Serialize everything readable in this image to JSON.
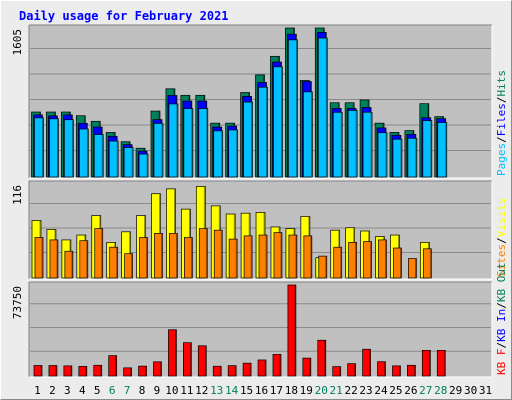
{
  "chart_data": [
    {
      "type": "bar",
      "title": "Daily usage for February 2021",
      "panel": "hits-files-pages",
      "ymax_label": "1605",
      "ylim": [
        0,
        1605
      ],
      "grid": true,
      "legend": [
        {
          "name": "Pages",
          "color": "#00c0ff"
        },
        {
          "name": "Files",
          "color": "#0000ff"
        },
        {
          "name": "Hits",
          "color": "#00805c"
        }
      ],
      "categories": [
        "1",
        "2",
        "3",
        "4",
        "5",
        "6",
        "7",
        "8",
        "9",
        "10",
        "11",
        "12",
        "13",
        "14",
        "15",
        "16",
        "17",
        "18",
        "19",
        "20",
        "21",
        "22",
        "23",
        "24",
        "25",
        "26",
        "27",
        "28",
        "29",
        "30",
        "31"
      ],
      "weekend_days": [
        "6",
        "7",
        "13",
        "14",
        "20",
        "21",
        "27",
        "28"
      ],
      "series": [
        {
          "name": "Hits",
          "values": [
            700,
            700,
            700,
            660,
            600,
            480,
            380,
            310,
            710,
            950,
            880,
            880,
            580,
            580,
            910,
            1100,
            1300,
            1605,
            1040,
            1605,
            800,
            800,
            830,
            580,
            480,
            500,
            790,
            650,
            0,
            0,
            0
          ]
        },
        {
          "name": "Files",
          "values": [
            690,
            680,
            690,
            600,
            560,
            460,
            370,
            300,
            640,
            900,
            840,
            840,
            560,
            570,
            890,
            1040,
            1260,
            1560,
            1050,
            1580,
            760,
            760,
            770,
            550,
            470,
            480,
            660,
            650,
            0,
            0,
            0
          ]
        },
        {
          "name": "Pages",
          "values": [
            680,
            670,
            660,
            560,
            500,
            430,
            360,
            290,
            620,
            830,
            780,
            780,
            540,
            550,
            850,
            1010,
            1230,
            1520,
            960,
            1540,
            740,
            760,
            740,
            520,
            450,
            460,
            650,
            630,
            0,
            0,
            0
          ]
        }
      ]
    },
    {
      "type": "bar",
      "panel": "visits-sites",
      "ymax_label": "116",
      "ylim": [
        0,
        116
      ],
      "grid": true,
      "legend": [
        {
          "name": "Sites",
          "color": "#ff8000"
        },
        {
          "name": "Visits",
          "color": "#ffff00"
        }
      ],
      "series": [
        {
          "name": "Visits",
          "values": [
            71,
            60,
            47,
            53,
            77,
            44,
            57,
            77,
            104,
            110,
            85,
            113,
            89,
            79,
            80,
            81,
            63,
            61,
            76,
            25,
            59,
            62,
            58,
            51,
            53,
            0,
            44,
            0,
            0,
            0,
            0
          ]
        },
        {
          "name": "Sites",
          "values": [
            50,
            47,
            33,
            46,
            61,
            38,
            30,
            50,
            55,
            55,
            50,
            61,
            59,
            48,
            52,
            53,
            56,
            53,
            52,
            27,
            38,
            44,
            45,
            47,
            37,
            24,
            36,
            0,
            0,
            0,
            0
          ]
        }
      ]
    },
    {
      "type": "bar",
      "panel": "kbytes",
      "ymax_label": "73750",
      "ylim": [
        0,
        73750
      ],
      "grid": true,
      "legend": [
        {
          "name": "KB F",
          "color": "#ff0000"
        },
        {
          "name": "KB In",
          "color": "#0000ff"
        },
        {
          "name": "KB Out",
          "color": "#00805c"
        }
      ],
      "series": [
        {
          "name": "KB F",
          "values": [
            8500,
            8500,
            8200,
            7800,
            8700,
            16500,
            6600,
            8000,
            11500,
            37500,
            27000,
            24500,
            7900,
            8400,
            10400,
            13000,
            17500,
            73750,
            14500,
            29000,
            7600,
            10000,
            21700,
            11600,
            8200,
            8700,
            20800,
            20800,
            0,
            0,
            0
          ]
        }
      ]
    }
  ],
  "colors": {
    "frame_bg": "#ececec",
    "plot_bg": "#c0c0c0",
    "title": "#0000ff",
    "axis_text": "#000000",
    "weekend_text": "#00805c"
  }
}
